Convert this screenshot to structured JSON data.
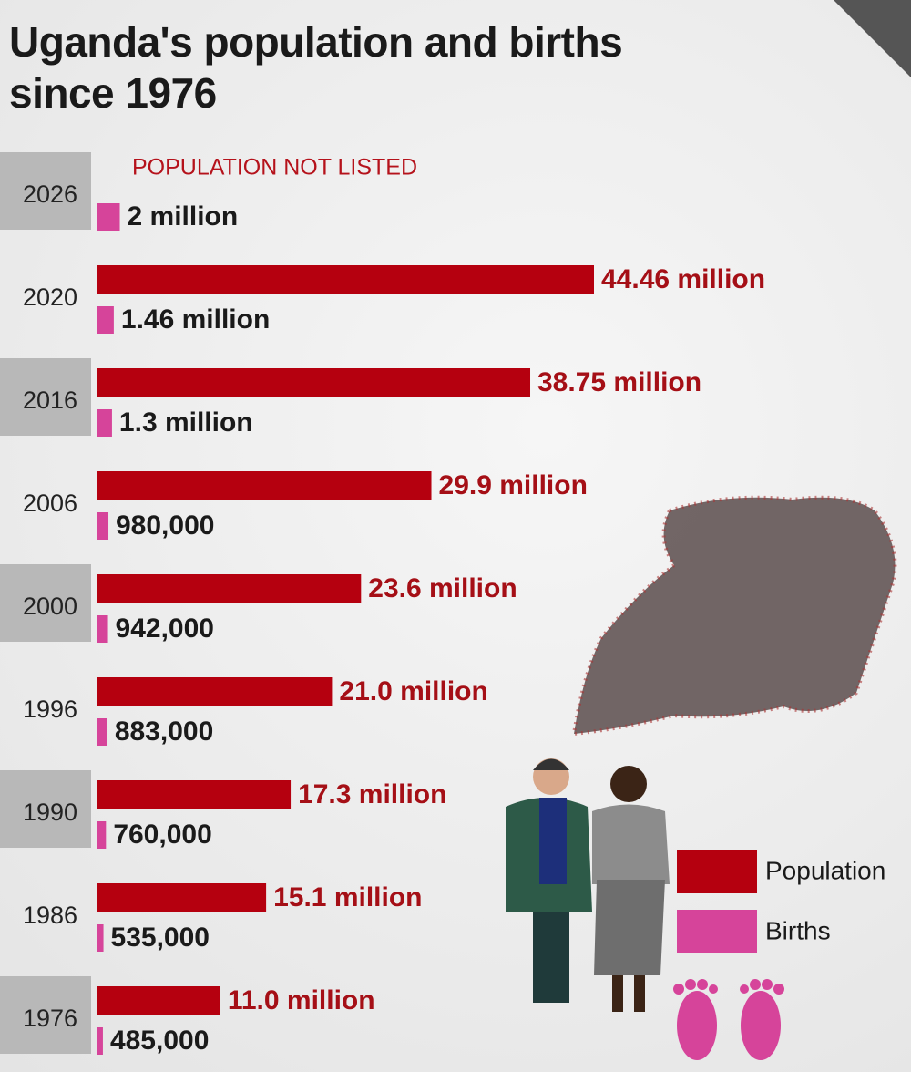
{
  "chart_data": {
    "type": "bar",
    "title": "Uganda's population and births since 1976",
    "categories": [
      "2026",
      "2020",
      "2016",
      "2006",
      "2000",
      "1996",
      "1990",
      "1986",
      "1976"
    ],
    "series": [
      {
        "name": "Population",
        "color": "#b5000f",
        "values": [
          null,
          44460000,
          38750000,
          29900000,
          23600000,
          21000000,
          17300000,
          15100000,
          11000000
        ],
        "value_labels": [
          null,
          "44.46 million",
          "38.75 million",
          "29.9 million",
          "23.6 million",
          "21.0 million",
          "17.3 million",
          "15.1 million",
          "11.0 million"
        ]
      },
      {
        "name": "Births",
        "color": "#d6449a",
        "values": [
          2000000,
          1460000,
          1300000,
          980000,
          942000,
          883000,
          760000,
          535000,
          485000
        ],
        "value_labels": [
          "2 million",
          "1.46 million",
          "1.3 million",
          "980,000",
          "942,000",
          "883,000",
          "760,000",
          "535,000",
          "485,000"
        ]
      }
    ],
    "annotations": [
      {
        "category": "2026",
        "text": "POPULATION NOT LISTED"
      }
    ]
  }
}
